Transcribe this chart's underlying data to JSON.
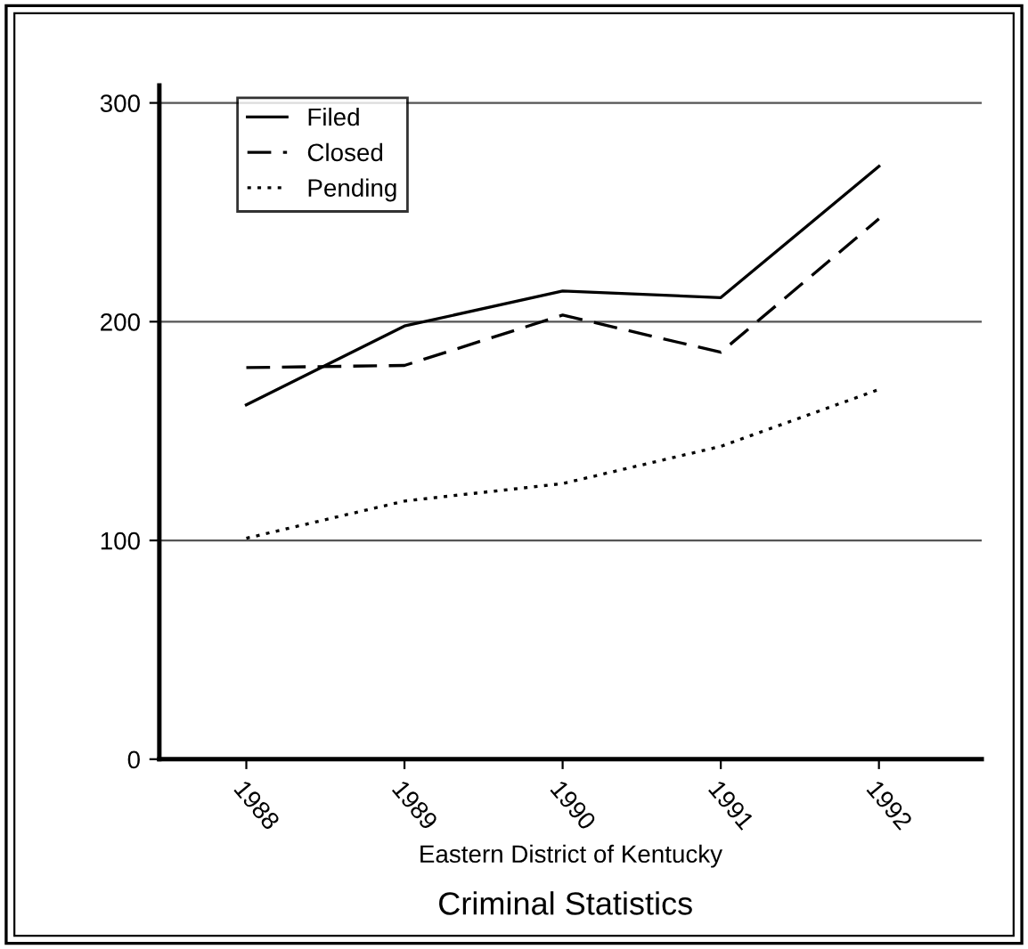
{
  "chart_data": {
    "type": "line",
    "title": "Criminal Statistics",
    "xlabel": "Eastern District of Kentucky",
    "categories": [
      "1988",
      "1989",
      "1990",
      "1991",
      "1992"
    ],
    "series": [
      {
        "name": "Filed",
        "color": "#000000",
        "line_style": "solid",
        "values": [
          162,
          198,
          214,
          211,
          271
        ]
      },
      {
        "name": "Closed",
        "color": "#000000",
        "line_style": "dashed",
        "values": [
          179,
          180,
          203,
          186,
          247
        ]
      },
      {
        "name": "Pending",
        "color": "#000000",
        "line_style": "dotted",
        "values": [
          101,
          118,
          126,
          143,
          169
        ]
      }
    ],
    "ylim": [
      0,
      308
    ],
    "yticks": [
      0,
      100,
      200,
      300
    ],
    "grid": "y",
    "legend": "top left",
    "marker": "none"
  }
}
